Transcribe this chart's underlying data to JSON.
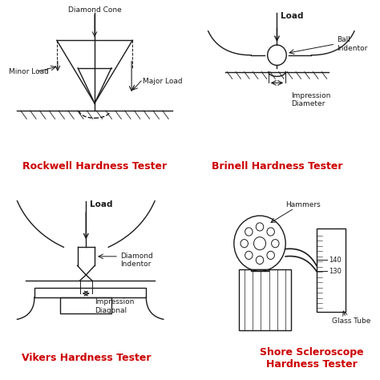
{
  "bg_color": "#ffffff",
  "line_color": "#1a1a1a",
  "red_color": "#cc0000",
  "title_fontsize": 9,
  "label_fontsize": 6.5,
  "ann_fontsize": 6.5,
  "figsize": [
    4.74,
    4.74
  ],
  "dpi": 100,
  "panels": {
    "rockwell": {
      "title": "Rockwell Hardness Tester",
      "label_cone": "Diamond Cone",
      "label_minor": "Minor Load",
      "label_major": "Major Load"
    },
    "brinell": {
      "title": "Brinell Hardness Tester",
      "label_load": "Load",
      "label_ball": "Ball\nIndentor",
      "label_imp": "Impression\nDiameter"
    },
    "vikers": {
      "title": "Vikers Hardness Tester",
      "label_load": "Load",
      "label_diamond": "Diamond\nIndentor",
      "label_imp": "Impression\nDiagonal"
    },
    "shore": {
      "title": "Shore Scleroscope\nHardness Tester",
      "label_hammers": "Hammers",
      "label_glass": "Glass Tube",
      "val1": "140",
      "val2": "130"
    }
  }
}
